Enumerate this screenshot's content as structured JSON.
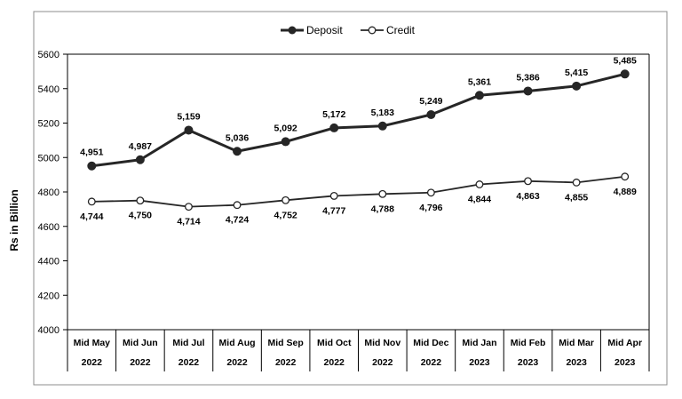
{
  "chart_data": {
    "type": "line",
    "title": "",
    "ylabel": "Rs in Billion",
    "xlabel": "",
    "ylim": [
      4000,
      5600
    ],
    "yticks": [
      4000,
      4200,
      4400,
      4600,
      4800,
      5000,
      5200,
      5400,
      5600
    ],
    "grid": false,
    "legend_position": "top-center",
    "categories": [
      {
        "line1": "Mid May",
        "line2": "2022"
      },
      {
        "line1": "Mid Jun",
        "line2": "2022"
      },
      {
        "line1": "Mid Jul",
        "line2": "2022"
      },
      {
        "line1": "Mid Aug",
        "line2": "2022"
      },
      {
        "line1": "Mid Sep",
        "line2": "2022"
      },
      {
        "line1": "Mid Oct",
        "line2": "2022"
      },
      {
        "line1": "Mid Nov",
        "line2": "2022"
      },
      {
        "line1": "Mid Dec",
        "line2": "2022"
      },
      {
        "line1": "Mid Jan",
        "line2": "2023"
      },
      {
        "line1": "Mid Feb",
        "line2": "2023"
      },
      {
        "line1": "Mid Mar",
        "line2": "2023"
      },
      {
        "line1": "Mid Apr",
        "line2": "2023"
      }
    ],
    "series": [
      {
        "name": "Deposit",
        "values": [
          4951,
          4987,
          5159,
          5036,
          5092,
          5172,
          5183,
          5249,
          5361,
          5386,
          5415,
          5485
        ],
        "labels": [
          "4,951",
          "4,987",
          "5,159",
          "5,036",
          "5,092",
          "5,172",
          "5,183",
          "5,249",
          "5,361",
          "5,386",
          "5,415",
          "5,485"
        ],
        "color": "#262626",
        "marker": "filled-circle"
      },
      {
        "name": "Credit",
        "values": [
          4744,
          4750,
          4714,
          4724,
          4752,
          4777,
          4788,
          4796,
          4844,
          4863,
          4855,
          4889
        ],
        "labels": [
          "4,744",
          "4,750",
          "4,714",
          "4,724",
          "4,752",
          "4,777",
          "4,788",
          "4,796",
          "4,844",
          "4,863",
          "4,855",
          "4,889"
        ],
        "color": "#262626",
        "marker": "hollow-circle"
      }
    ]
  }
}
